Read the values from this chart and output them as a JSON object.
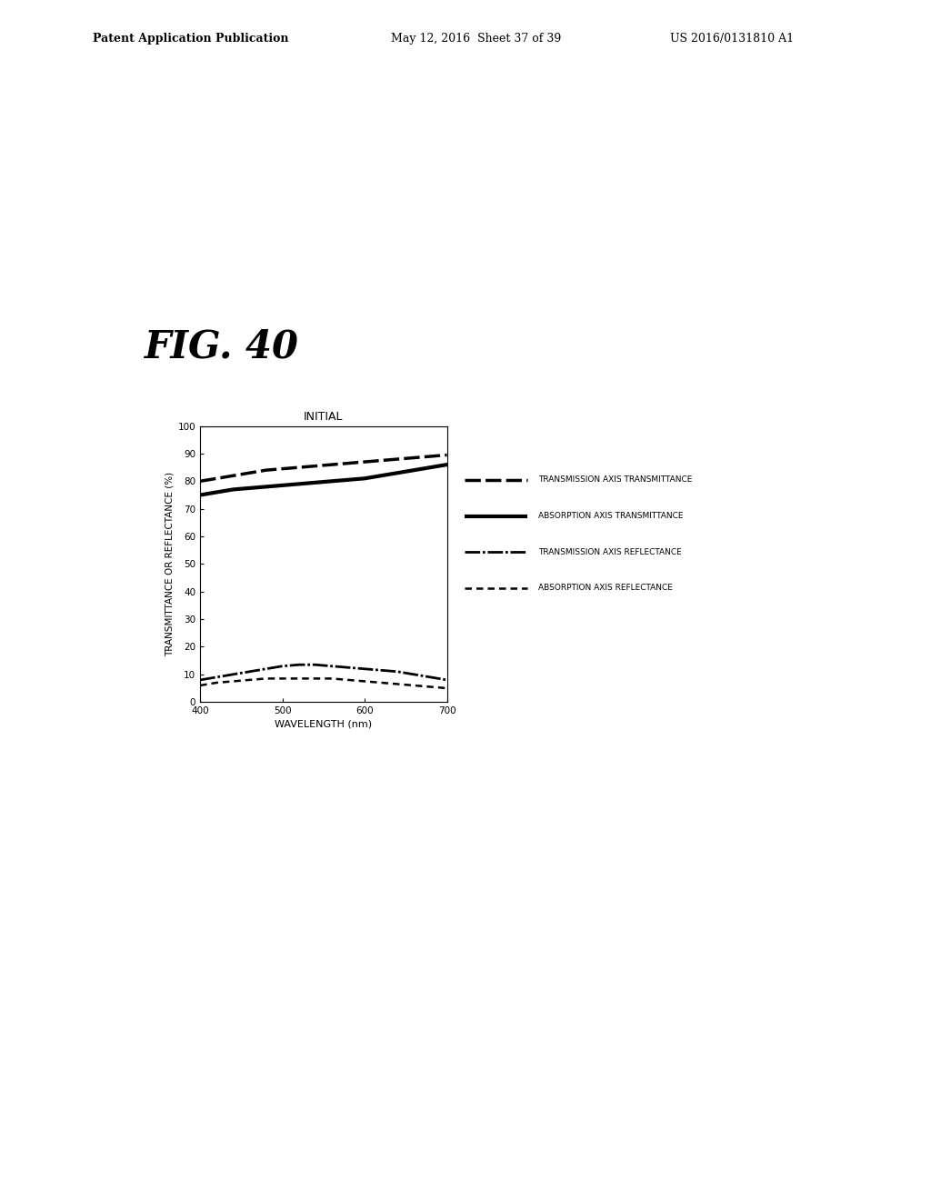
{
  "title": "INITIAL",
  "fig_label": "FIG. 40",
  "xlabel": "WAVELENGTH (nm)",
  "ylabel": "TRANSMITTANCE OR REFLECTANCE (%)",
  "xlim": [
    400,
    700
  ],
  "ylim": [
    0,
    100
  ],
  "yticks": [
    0,
    10,
    20,
    30,
    40,
    50,
    60,
    70,
    80,
    90,
    100
  ],
  "xticks": [
    400,
    500,
    600,
    700
  ],
  "wavelengths": [
    400,
    420,
    440,
    460,
    480,
    500,
    520,
    540,
    560,
    580,
    600,
    620,
    640,
    660,
    680,
    700
  ],
  "trans_axis_transmittance": [
    75,
    76,
    77,
    77.5,
    78,
    78.5,
    79,
    79.5,
    80,
    80.5,
    81,
    82,
    83,
    84,
    85,
    86
  ],
  "absorb_axis_transmittance": [
    80,
    81,
    82,
    83,
    84,
    84.5,
    85,
    85.5,
    86,
    86.5,
    87,
    87.5,
    88,
    88.5,
    89,
    89.5
  ],
  "trans_axis_reflectance": [
    8,
    9,
    10,
    11,
    12,
    13,
    13.5,
    13.5,
    13,
    12.5,
    12,
    11.5,
    11,
    10,
    9,
    8
  ],
  "absorb_axis_reflectance": [
    6,
    7,
    7.5,
    8,
    8.5,
    8.5,
    8.5,
    8.5,
    8.5,
    8,
    7.5,
    7,
    6.5,
    6,
    5.5,
    5
  ],
  "header_left": "Patent Application Publication",
  "header_mid": "May 12, 2016  Sheet 37 of 39",
  "header_right": "US 2016/0131810 A1",
  "background_color": "#ffffff",
  "line_color": "#000000",
  "legend_items": [
    {
      "label": "TRANSMISSION AXIS TRANSMITTANCE"
    },
    {
      "label": "ABSORPTION AXIS TRANSMITTANCE"
    },
    {
      "label": "TRANSMISSION AXIS REFLECTANCE"
    },
    {
      "label": "ABSORPTION AXIS REFLECTANCE"
    }
  ]
}
